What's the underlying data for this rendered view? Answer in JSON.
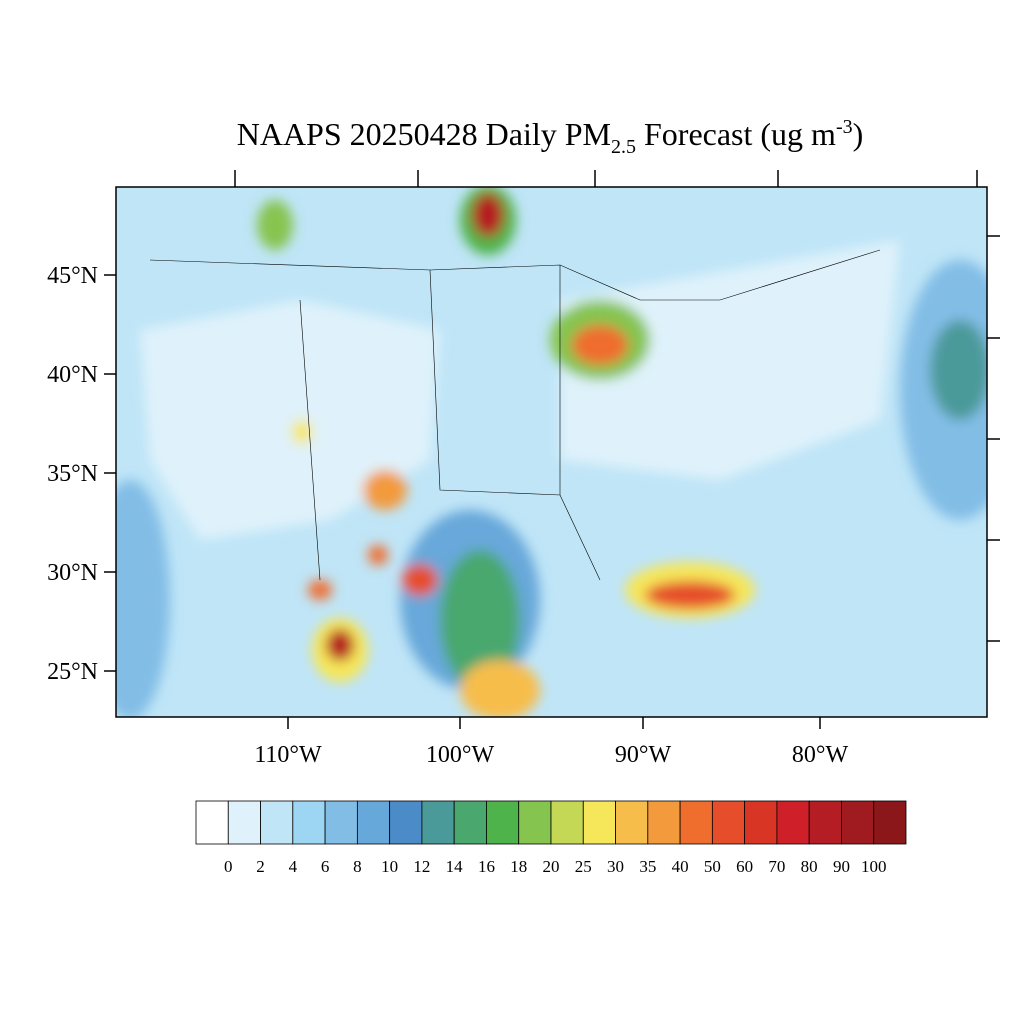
{
  "title": {
    "main": "NAAPS 20250428 Daily PM",
    "subscript": "2.5",
    "middle": " Forecast (ug m",
    "superscript": "-3",
    "end": ")"
  },
  "map": {
    "lat_labels": [
      "45°N",
      "40°N",
      "35°N",
      "30°N",
      "25°N"
    ],
    "lon_labels": [
      "110°W",
      "100°W",
      "90°W",
      "80°W"
    ]
  },
  "colorbar": {
    "levels": [
      0,
      2,
      4,
      6,
      8,
      10,
      12,
      14,
      16,
      18,
      20,
      25,
      30,
      35,
      40,
      50,
      60,
      70,
      80,
      90,
      100
    ],
    "colors": [
      "#ffffff",
      "#dff2fb",
      "#bfe5f7",
      "#9dd6f3",
      "#82bde6",
      "#67a8da",
      "#4a8bc8",
      "#4b9a9a",
      "#4aa86e",
      "#4db34a",
      "#86c450",
      "#c4d856",
      "#f6e65a",
      "#f7bd4b",
      "#f39a3d",
      "#ef6d2d",
      "#e64d2b",
      "#d93525",
      "#cf2029",
      "#b51d24",
      "#a01b1f",
      "#8c171a"
    ]
  }
}
